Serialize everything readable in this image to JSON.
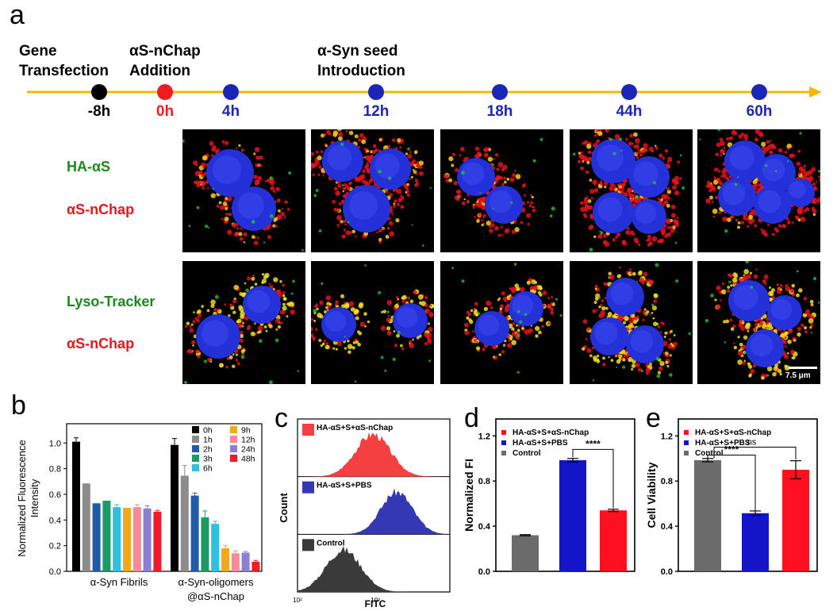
{
  "panels": {
    "a": "a",
    "b": "b",
    "c": "c",
    "d": "d",
    "e": "e"
  },
  "timeline": {
    "events": [
      {
        "line1": "Gene",
        "line2": "Transfection"
      },
      {
        "line1": "αS-nChap",
        "line2": "Addition"
      },
      {
        "line1": "α-Syn seed",
        "line2": "Introduction"
      }
    ],
    "times": [
      {
        "label": "-8h",
        "color": "#000000"
      },
      {
        "label": "0h",
        "color": "#ef1c24"
      },
      {
        "label": "4h",
        "color": "#1b26b8"
      },
      {
        "label": "12h",
        "color": "#1b26b8"
      },
      {
        "label": "18h",
        "color": "#1b26b8"
      },
      {
        "label": "44h",
        "color": "#1b26b8"
      },
      {
        "label": "60h",
        "color": "#1b26b8"
      }
    ],
    "axis_color": "#f5b800"
  },
  "rows": {
    "row1": {
      "label_green": "HA-αS",
      "label_red": "αS-nChap"
    },
    "row2": {
      "label_green": "Lyso-Tracker",
      "label_red": "αS-nChap"
    },
    "scale_bar": "7.5 μm"
  },
  "chart_data": [
    {
      "id": "b",
      "type": "bar",
      "xlabel": "",
      "ylabel": "Normalized Fluorescence Intensity",
      "ylim": [
        0,
        1.15
      ],
      "yticks": [
        "0.0",
        "0.2",
        "0.4",
        "0.6",
        "0.8",
        "1.0"
      ],
      "groups": [
        {
          "name": "α-Syn Fibrils",
          "values": [
            1.01,
            0.685,
            0.53,
            0.55,
            0.5,
            0.495,
            0.5,
            0.49,
            0.465
          ],
          "errors": [
            0.03,
            0.0,
            0.0,
            0.0,
            0.02,
            0.0,
            0.02,
            0.02,
            0.01
          ]
        },
        {
          "name_line1": "α-Syn-oligomers",
          "name_line2": "@αS-nChap",
          "values": [
            0.985,
            0.745,
            0.59,
            0.42,
            0.37,
            0.18,
            0.14,
            0.145,
            0.075
          ],
          "errors": [
            0.05,
            0.08,
            0.02,
            0.05,
            0.02,
            0.02,
            0.02,
            0.01,
            0.01
          ]
        }
      ],
      "series": [
        {
          "name": "0h",
          "color": "#000000"
        },
        {
          "name": "1h",
          "color": "#8c8c8c"
        },
        {
          "name": "2h",
          "color": "#1f5ba8"
        },
        {
          "name": "3h",
          "color": "#1a9a64"
        },
        {
          "name": "6h",
          "color": "#2ec0dc"
        },
        {
          "name": "9h",
          "color": "#f0a81c"
        },
        {
          "name": "12h",
          "color": "#f48a9a"
        },
        {
          "name": "24h",
          "color": "#8a7fd0"
        },
        {
          "name": "48h",
          "color": "#ee1c28"
        }
      ]
    },
    {
      "id": "c",
      "type": "histogram",
      "xlabel": "FITC",
      "ylabel": "Count",
      "xticks": [
        "10²",
        "10³"
      ],
      "series": [
        {
          "name": "HA-αS+S+αS-nChap",
          "color": "#f44040"
        },
        {
          "name": "HA-αS+S+PBS",
          "color": "#3438b4"
        },
        {
          "name": "Control",
          "color": "#3a3a3a"
        }
      ]
    },
    {
      "id": "d",
      "type": "bar",
      "ylabel": "Normalized FI",
      "ylim": [
        0,
        1.35
      ],
      "yticks": [
        "0.0",
        "0.4",
        "0.8",
        "1.2"
      ],
      "categories": [
        "Control",
        "HA-αS+S+PBS",
        "HA-αS+S+αS-nChap"
      ],
      "values": [
        0.32,
        0.985,
        0.54
      ],
      "errors": [
        0.005,
        0.015,
        0.01
      ],
      "colors": [
        "#6b6b6b",
        "#1414c8",
        "#ff1020"
      ],
      "legend": [
        {
          "name": "HA-αS+S+αS-nChap",
          "color": "#ff1020"
        },
        {
          "name": "HA-αS+S+PBS",
          "color": "#1414c8"
        },
        {
          "name": "Control",
          "color": "#6b6b6b"
        }
      ],
      "significance": [
        {
          "label": "****"
        }
      ]
    },
    {
      "id": "e",
      "type": "bar",
      "ylabel": "Cell Viability",
      "ylim": [
        0,
        1.35
      ],
      "yticks": [
        "0.0",
        "0.4",
        "0.8",
        "1.2"
      ],
      "categories": [
        "Control",
        "HA-αS+S+PBS",
        "HA-αS+S+αS-nChap"
      ],
      "values": [
        0.985,
        0.515,
        0.9
      ],
      "errors": [
        0.015,
        0.02,
        0.08
      ],
      "colors": [
        "#6b6b6b",
        "#1414c8",
        "#ff1020"
      ],
      "legend": [
        {
          "name": "HA-αS+S+αS-nChap",
          "color": "#ff1020"
        },
        {
          "name": "HA-αS+S+PBS",
          "color": "#1414c8"
        },
        {
          "name": "Control",
          "color": "#6b6b6b"
        }
      ],
      "significance": [
        {
          "label": "****"
        },
        {
          "label": "ns"
        }
      ]
    }
  ]
}
